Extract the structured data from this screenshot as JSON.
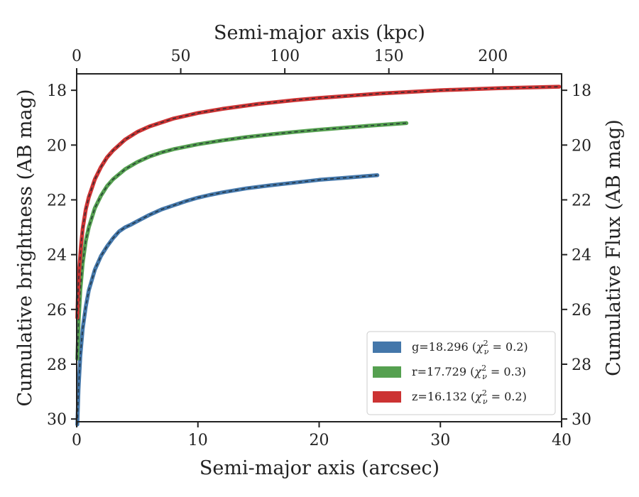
{
  "chart_data": {
    "type": "line",
    "xlabel": "Semi-major axis (arcsec)",
    "ylabel": "Cumulative brightness (AB mag)",
    "top_xlabel": "Semi-major axis (kpc)",
    "right_ylabel": "Cumulative Flux (AB mag)",
    "xlim": [
      0,
      40
    ],
    "ylim": [
      30.1,
      17.4
    ],
    "top_xlim": [
      0,
      233
    ],
    "x_ticks": [
      0,
      10,
      20,
      30,
      40
    ],
    "y_ticks": [
      18,
      20,
      22,
      24,
      26,
      28,
      30
    ],
    "top_x_ticks": [
      0,
      50,
      100,
      150,
      200
    ],
    "grid": false,
    "legend_position": "lower-right",
    "series": [
      {
        "name": "g=18.296 (χ²ν = 0.2)",
        "band": "g",
        "mag": "18.296",
        "chi2": "0.2",
        "color": "#4477aa",
        "x": [
          0.05,
          0.15,
          0.3,
          0.5,
          0.75,
          1.0,
          1.5,
          2.0,
          2.5,
          3.0,
          3.5,
          4.0,
          4.5,
          5.0,
          6.0,
          7.0,
          8.0,
          9.0,
          10.0,
          11.0,
          12.0,
          14.0,
          16.0,
          18.0,
          20.0,
          22.0,
          24.8
        ],
        "y": [
          30.2,
          28.9,
          27.7,
          26.7,
          25.9,
          25.3,
          24.55,
          24.05,
          23.7,
          23.4,
          23.15,
          23.0,
          22.9,
          22.78,
          22.55,
          22.35,
          22.2,
          22.05,
          21.92,
          21.82,
          21.73,
          21.58,
          21.47,
          21.37,
          21.27,
          21.2,
          21.1
        ]
      },
      {
        "name": "r=17.729 (χ²ν = 0.3)",
        "band": "r",
        "mag": "17.729",
        "chi2": "0.3",
        "color": "#55a050",
        "x": [
          0.05,
          0.15,
          0.3,
          0.5,
          0.75,
          1.0,
          1.5,
          2.0,
          2.5,
          3.0,
          4.0,
          5.0,
          6.0,
          7.0,
          8.0,
          10.0,
          12.0,
          14.0,
          16.0,
          18.0,
          20.0,
          22.0,
          24.0,
          27.2
        ],
        "y": [
          27.8,
          26.5,
          25.3,
          24.3,
          23.5,
          23.0,
          22.3,
          21.85,
          21.5,
          21.25,
          20.88,
          20.62,
          20.42,
          20.27,
          20.15,
          19.97,
          19.83,
          19.71,
          19.61,
          19.52,
          19.44,
          19.37,
          19.3,
          19.2
        ]
      },
      {
        "name": "z=16.132 (χ²ν = 0.2)",
        "band": "z",
        "mag": "16.132",
        "chi2": "0.2",
        "color": "#cc3333",
        "x": [
          0.05,
          0.1,
          0.2,
          0.35,
          0.5,
          0.75,
          1.0,
          1.5,
          2.0,
          2.5,
          3.0,
          4.0,
          5.0,
          6.0,
          8.0,
          10.0,
          12.0,
          15.0,
          18.0,
          20.0,
          25.0,
          30.0,
          35.0,
          39.8
        ],
        "y": [
          26.3,
          25.5,
          24.6,
          23.7,
          23.05,
          22.35,
          21.9,
          21.25,
          20.8,
          20.45,
          20.2,
          19.8,
          19.52,
          19.32,
          19.03,
          18.83,
          18.68,
          18.5,
          18.36,
          18.28,
          18.12,
          18.0,
          17.92,
          17.87
        ]
      }
    ]
  }
}
